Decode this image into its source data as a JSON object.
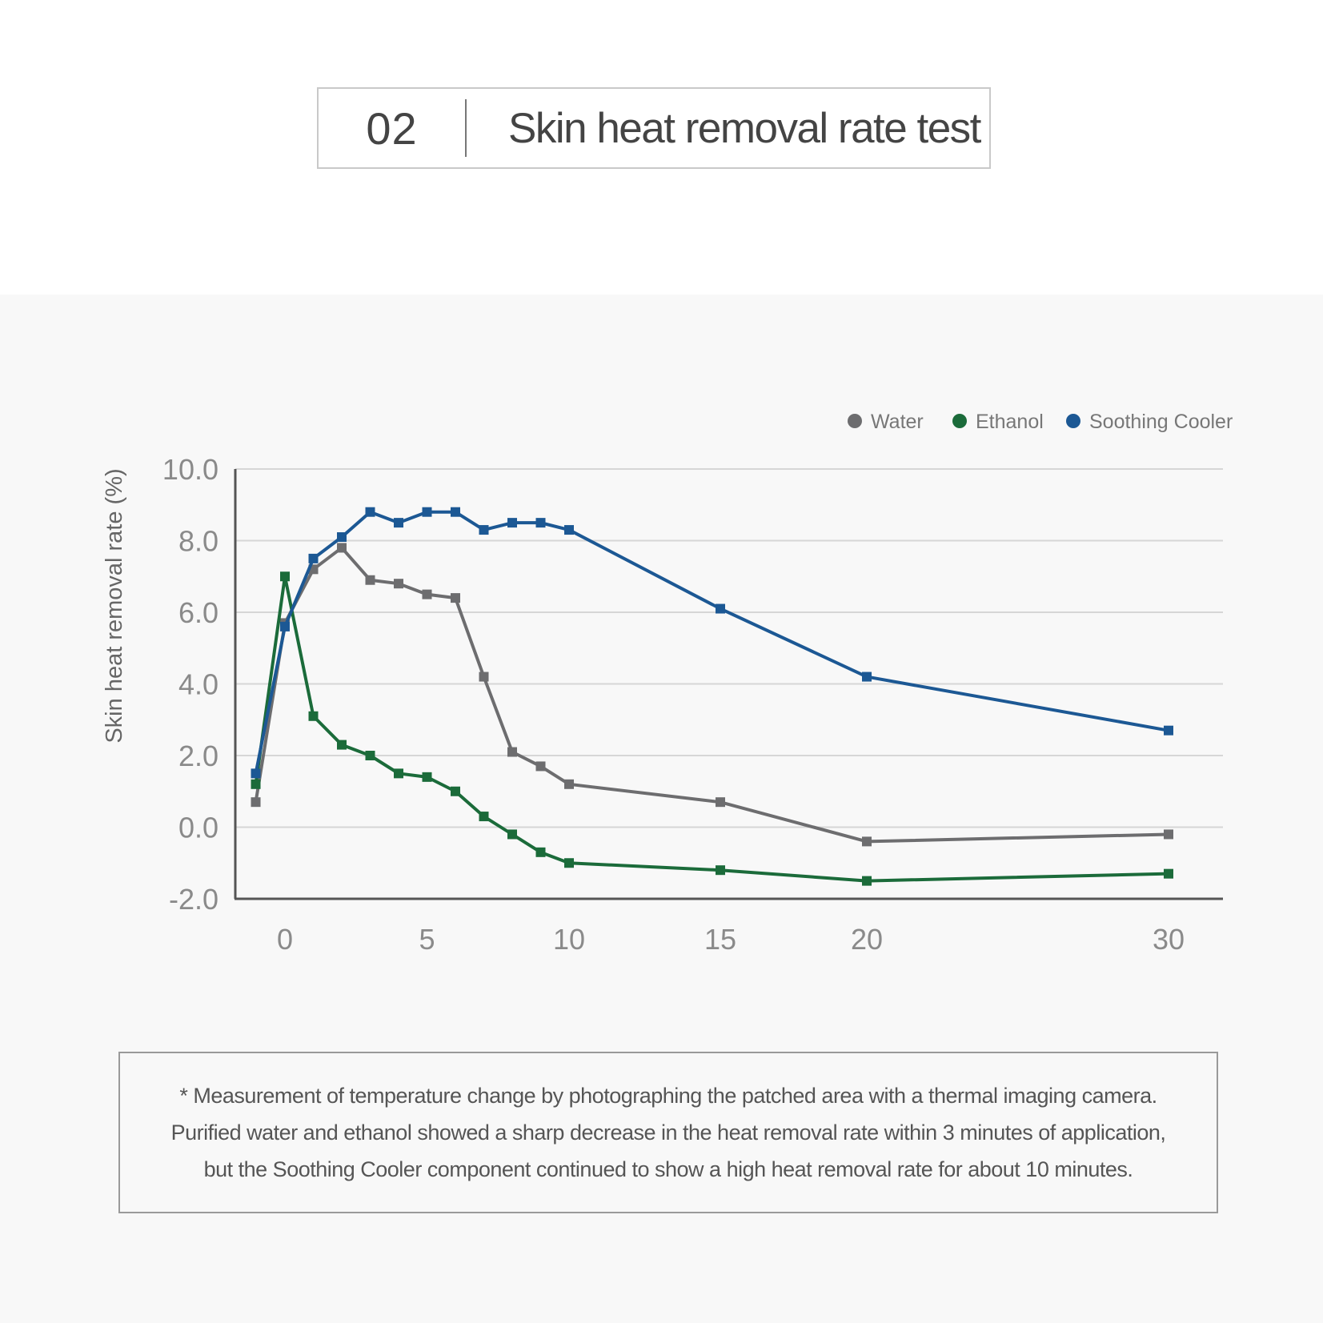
{
  "header": {
    "number": "02",
    "title": "Skin heat removal rate test"
  },
  "chart_data": {
    "type": "line",
    "title": "",
    "xlabel": "",
    "ylabel": "Skin heat removal rate (%)",
    "ylim": [
      -2.0,
      10.0
    ],
    "yticks": [
      "10.0",
      "8.0",
      "6.0",
      "4.0",
      "2.0",
      "0.0",
      "-2.0"
    ],
    "ytick_values": [
      10,
      8,
      6,
      4,
      2,
      0,
      -2
    ],
    "xtick_labels": [
      "0",
      "5",
      "10",
      "15",
      "20",
      "30"
    ],
    "x": [
      -1,
      0,
      1,
      2,
      3,
      4,
      5,
      6,
      7,
      8,
      9,
      10,
      15,
      20,
      30
    ],
    "grid": "horizontal",
    "legend_position": "top-right",
    "series": [
      {
        "name": "Water",
        "color": "#6d6d6f",
        "values": [
          0.7,
          5.7,
          7.2,
          7.8,
          6.9,
          6.8,
          6.5,
          6.4,
          4.2,
          2.1,
          1.7,
          1.2,
          0.7,
          -0.4,
          -0.2
        ]
      },
      {
        "name": "Ethanol",
        "color": "#1b6b3a",
        "values": [
          1.2,
          7.0,
          3.1,
          2.3,
          2.0,
          1.5,
          1.4,
          1.0,
          0.3,
          -0.2,
          -0.7,
          -1.0,
          -1.2,
          -1.5,
          -1.3
        ]
      },
      {
        "name": "Soothing Cooler",
        "color": "#1c5894",
        "values": [
          1.5,
          5.6,
          7.5,
          8.1,
          8.8,
          8.5,
          8.8,
          8.8,
          8.3,
          8.5,
          8.5,
          8.3,
          6.1,
          4.2,
          2.7
        ]
      }
    ]
  },
  "note": {
    "lines": [
      "* Measurement of temperature change by photographing the patched area with a thermal imaging camera.",
      "Purified water and ethanol showed a sharp decrease in the heat removal rate within 3 minutes of application,",
      "but the Soothing Cooler component continued to show a high heat removal rate for about 10 minutes."
    ]
  }
}
